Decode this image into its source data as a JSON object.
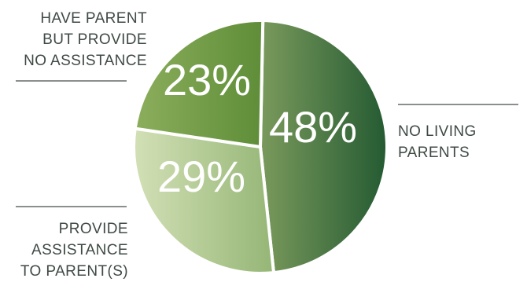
{
  "chart_data": {
    "type": "pie",
    "title": "",
    "slices": [
      {
        "label": "NO LIVING PARENTS",
        "value": 48,
        "display": "48%",
        "color": "#2f6a3a",
        "color_light": "#7a9a5c"
      },
      {
        "label": "PROVIDE ASSISTANCE TO PARENT(S)",
        "value": 29,
        "display": "29%",
        "color": "#9cba7c",
        "color_light": "#cfddb0"
      },
      {
        "label": "HAVE PARENT BUT PROVIDE NO ASSISTANCE",
        "value": 23,
        "display": "23%",
        "color": "#5f8f3a",
        "color_light": "#86ab58"
      }
    ]
  },
  "labels": {
    "no_living": "NO LIVING\nPARENTS",
    "provide": "PROVIDE\nASSISTANCE\nTO PARENT(S)",
    "have_parent": "HAVE PARENT\nBUT PROVIDE\nNO ASSISTANCE"
  }
}
